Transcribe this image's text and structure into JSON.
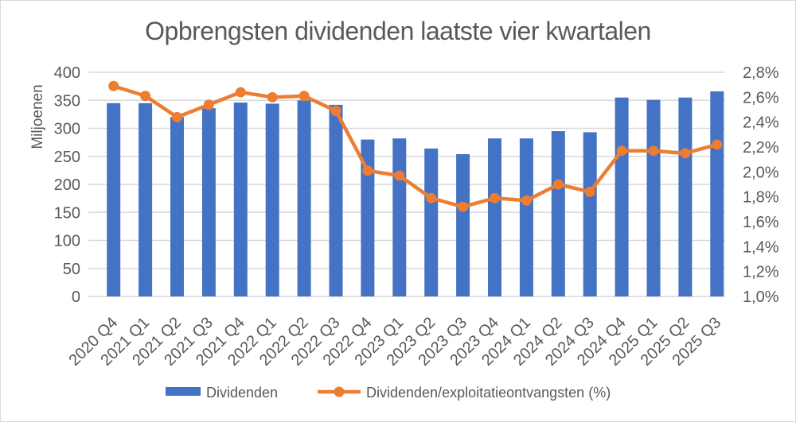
{
  "title": "Opbrengsten dividenden laatste vier kwartalen",
  "left_axis": {
    "label": "Miljoenen",
    "ticks": [
      "400",
      "350",
      "300",
      "250",
      "200",
      "150",
      "100",
      "50",
      "0"
    ]
  },
  "right_axis": {
    "ticks": [
      "2,8%",
      "2,6%",
      "2,4%",
      "2,2%",
      "2,0%",
      "1,8%",
      "1,6%",
      "1,4%",
      "1,2%",
      "1,0%"
    ]
  },
  "legend": {
    "bar_label": "Dividenden",
    "line_label": "Dividenden/exploitatieontvangsten (%)"
  },
  "colors": {
    "bar": "#4472C4",
    "line": "#ED7D31",
    "text": "#595959",
    "grid": "#D9D9D9"
  },
  "chart_data": {
    "type": "bar",
    "subtype": "combo-bar-line-dual-axis",
    "title": "Opbrengsten dividenden laatste vier kwartalen",
    "categories": [
      "2020 Q4",
      "2021 Q1",
      "2021 Q2",
      "2021 Q3",
      "2021 Q4",
      "2022 Q1",
      "2022 Q2",
      "2022 Q3",
      "2022 Q4",
      "2023 Q1",
      "2023 Q2",
      "2023 Q3",
      "2023 Q4",
      "2024 Q1",
      "2024 Q2",
      "2024 Q3",
      "2024 Q4",
      "2025 Q1",
      "2025 Q2",
      "2025 Q3"
    ],
    "series": [
      {
        "name": "Dividenden",
        "type": "bar",
        "axis": "left",
        "values": [
          345,
          345,
          320,
          336,
          346,
          344,
          350,
          342,
          280,
          282,
          264,
          254,
          282,
          282,
          295,
          293,
          355,
          351,
          355,
          366
        ]
      },
      {
        "name": "Dividenden/exploitatieontvangsten (%)",
        "type": "line",
        "axis": "right",
        "values": [
          2.69,
          2.61,
          2.44,
          2.54,
          2.64,
          2.6,
          2.61,
          2.49,
          2.01,
          1.97,
          1.79,
          1.72,
          1.79,
          1.77,
          1.9,
          1.84,
          2.17,
          2.17,
          2.15,
          2.22
        ]
      }
    ],
    "left_ylabel": "Miljoenen",
    "left_ylim": [
      0,
      400
    ],
    "left_tick_step": 50,
    "right_ylim": [
      1.0,
      2.8
    ],
    "right_tick_step": 0.2,
    "grid": true,
    "legend_position": "bottom"
  }
}
